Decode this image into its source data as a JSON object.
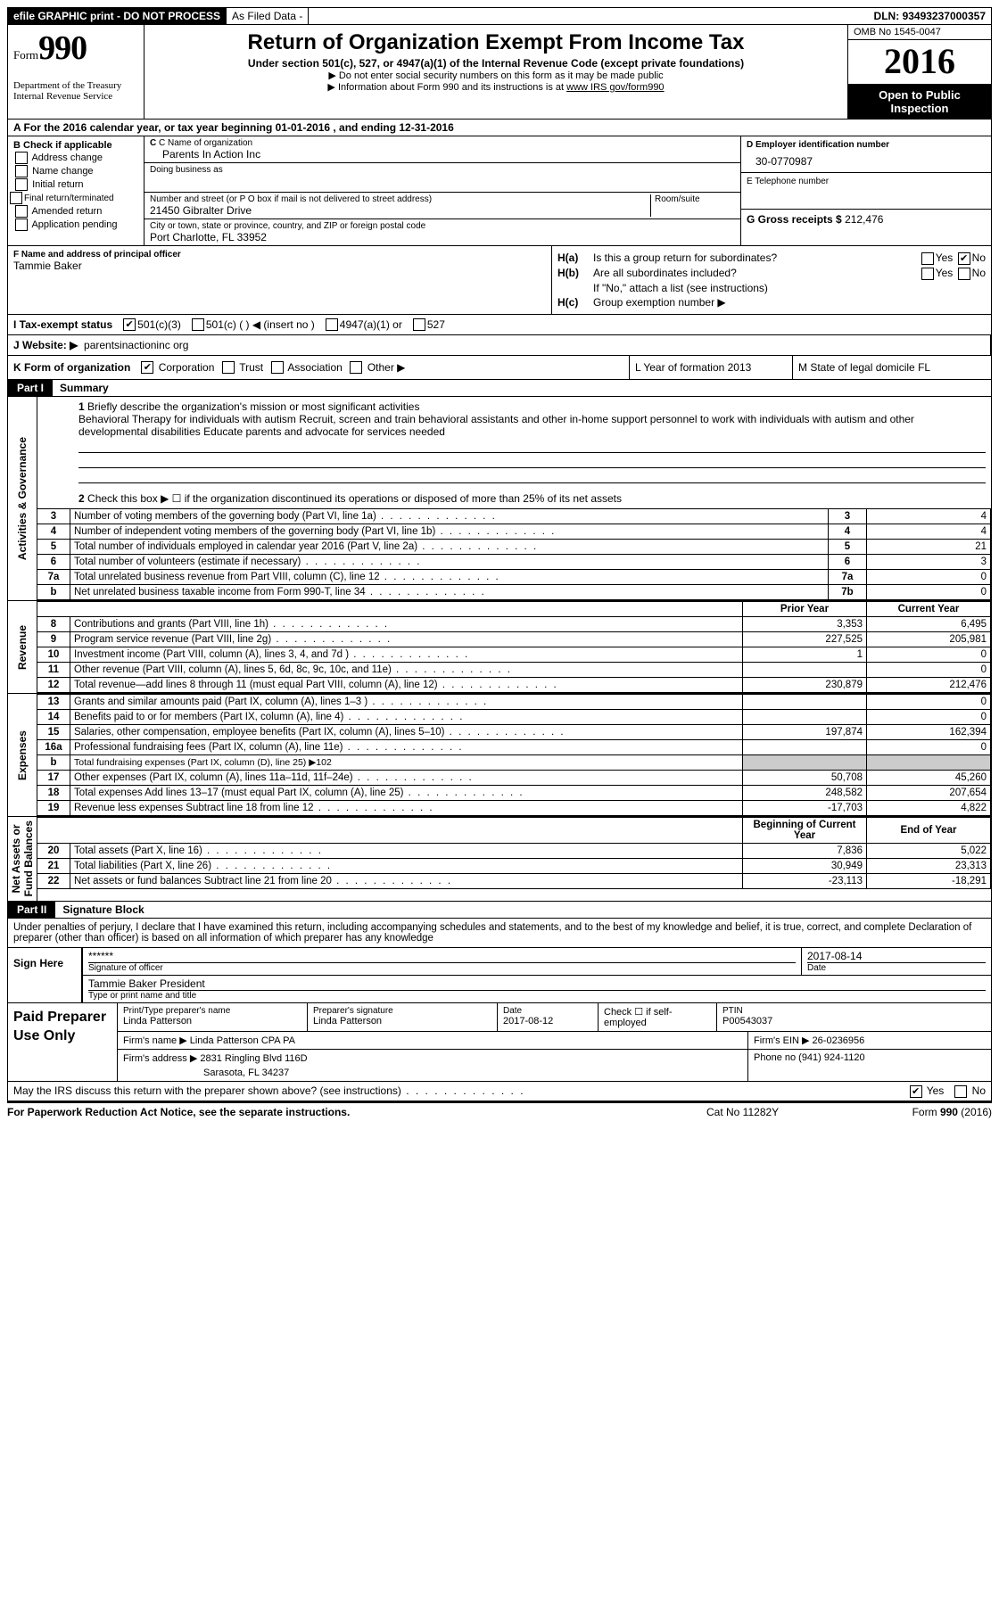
{
  "topbar": {
    "efile": "efile GRAPHIC print - DO NOT PROCESS",
    "asfiled": "As Filed Data -",
    "dln_label": "DLN:",
    "dln": "93493237000357"
  },
  "header": {
    "form_word": "Form",
    "form_no": "990",
    "dept1": "Department of the Treasury",
    "dept2": "Internal Revenue Service",
    "title": "Return of Organization Exempt From Income Tax",
    "subtitle": "Under section 501(c), 527, or 4947(a)(1) of the Internal Revenue Code (except private foundations)",
    "line1": "▶ Do not enter social security numbers on this form as it may be made public",
    "line2_pre": "▶ Information about Form 990 and its instructions is at ",
    "line2_link": "www IRS gov/form990",
    "omb": "OMB No  1545-0047",
    "year": "2016",
    "open": "Open to Public Inspection"
  },
  "rowA": "A   For the 2016 calendar year, or tax year beginning 01-01-2016   , and ending 12-31-2016",
  "boxB": {
    "hdr": "B Check if applicable",
    "opts": [
      "Address change",
      "Name change",
      "Initial return",
      "Final return/terminated",
      "Amended return",
      "Application pending"
    ]
  },
  "boxC": {
    "name_lbl": "C Name of organization",
    "name": "Parents In Action Inc",
    "dba_lbl": "Doing business as",
    "addr_lbl": "Number and street (or P O  box if mail is not delivered to street address)",
    "room_lbl": "Room/suite",
    "addr": "21450 Gibralter Drive",
    "city_lbl": "City or town, state or province, country, and ZIP or foreign postal code",
    "city": "Port Charlotte, FL  33952"
  },
  "boxD": {
    "lbl": "D Employer identification number",
    "val": "30-0770987"
  },
  "boxE": {
    "lbl": "E Telephone number"
  },
  "boxG": {
    "lbl": "G Gross receipts $",
    "val": "212,476"
  },
  "boxF": {
    "lbl": "F  Name and address of principal officer",
    "val": "Tammie Baker"
  },
  "boxH": {
    "a_lbl": "H(a)",
    "a_txt": "Is this a group return for subordinates?",
    "b_lbl": "H(b)",
    "b_txt": "Are all subordinates included?",
    "note": "If \"No,\" attach a list  (see instructions)",
    "c_lbl": "H(c)",
    "c_txt": "Group exemption number ▶",
    "yes": "Yes",
    "no": "No"
  },
  "rowI": {
    "lbl": "I   Tax-exempt status",
    "o1": "501(c)(3)",
    "o2": "501(c) (   ) ◀ (insert no )",
    "o3": "4947(a)(1) or",
    "o4": "527"
  },
  "rowJ": {
    "lbl": "J   Website: ▶",
    "val": "parentsinactioninc org"
  },
  "rowK": {
    "lbl": "K Form of organization",
    "o1": "Corporation",
    "o2": "Trust",
    "o3": "Association",
    "o4": "Other ▶",
    "L": "L Year of formation  2013",
    "M": "M State of legal domicile  FL"
  },
  "part1": {
    "num": "Part I",
    "title": "Summary"
  },
  "q1": {
    "num": "1",
    "txt": "Briefly describe the organization's mission or most significant activities",
    "desc": "Behavioral Therapy for individuals with autism  Recruit, screen and train behavioral assistants and other in-home support personnel to work with individuals with autism and other developmental disabilities  Educate parents and advocate for services needed"
  },
  "q2": {
    "num": "2",
    "txt": "Check this box ▶ ☐  if the organization discontinued its operations or disposed of more than 25% of its net assets"
  },
  "gov_rows": [
    {
      "n": "3",
      "d": "Number of voting members of the governing body (Part VI, line 1a)",
      "ref": "3",
      "v": "4"
    },
    {
      "n": "4",
      "d": "Number of independent voting members of the governing body (Part VI, line 1b)",
      "ref": "4",
      "v": "4"
    },
    {
      "n": "5",
      "d": "Total number of individuals employed in calendar year 2016 (Part V, line 2a)",
      "ref": "5",
      "v": "21"
    },
    {
      "n": "6",
      "d": "Total number of volunteers (estimate if necessary)",
      "ref": "6",
      "v": "3"
    },
    {
      "n": "7a",
      "d": "Total unrelated business revenue from Part VIII, column (C), line 12",
      "ref": "7a",
      "v": "0"
    },
    {
      "n": "b",
      "d": "Net unrelated business taxable income from Form 990-T, line 34",
      "ref": "7b",
      "v": "0"
    }
  ],
  "rev_hdr": {
    "py": "Prior Year",
    "cy": "Current Year"
  },
  "rev_rows": [
    {
      "n": "8",
      "d": "Contributions and grants (Part VIII, line 1h)",
      "py": "3,353",
      "cy": "6,495"
    },
    {
      "n": "9",
      "d": "Program service revenue (Part VIII, line 2g)",
      "py": "227,525",
      "cy": "205,981"
    },
    {
      "n": "10",
      "d": "Investment income (Part VIII, column (A), lines 3, 4, and 7d )",
      "py": "1",
      "cy": "0"
    },
    {
      "n": "11",
      "d": "Other revenue (Part VIII, column (A), lines 5, 6d, 8c, 9c, 10c, and 11e)",
      "py": "",
      "cy": "0"
    },
    {
      "n": "12",
      "d": "Total revenue—add lines 8 through 11 (must equal Part VIII, column (A), line 12)",
      "py": "230,879",
      "cy": "212,476"
    }
  ],
  "exp_rows": [
    {
      "n": "13",
      "d": "Grants and similar amounts paid (Part IX, column (A), lines 1–3 )",
      "py": "",
      "cy": "0"
    },
    {
      "n": "14",
      "d": "Benefits paid to or for members (Part IX, column (A), line 4)",
      "py": "",
      "cy": "0"
    },
    {
      "n": "15",
      "d": "Salaries, other compensation, employee benefits (Part IX, column (A), lines 5–10)",
      "py": "197,874",
      "cy": "162,394"
    },
    {
      "n": "16a",
      "d": "Professional fundraising fees (Part IX, column (A), line 11e)",
      "py": "",
      "cy": "0"
    },
    {
      "n": "b",
      "d": "Total fundraising expenses (Part IX, column (D), line 25) ▶102",
      "py": "—",
      "cy": "—"
    },
    {
      "n": "17",
      "d": "Other expenses (Part IX, column (A), lines 11a–11d, 11f–24e)",
      "py": "50,708",
      "cy": "45,260"
    },
    {
      "n": "18",
      "d": "Total expenses  Add lines 13–17 (must equal Part IX, column (A), line 25)",
      "py": "248,582",
      "cy": "207,654"
    },
    {
      "n": "19",
      "d": "Revenue less expenses  Subtract line 18 from line 12",
      "py": "-17,703",
      "cy": "4,822"
    }
  ],
  "na_hdr": {
    "b": "Beginning of Current Year",
    "e": "End of Year"
  },
  "na_rows": [
    {
      "n": "20",
      "d": "Total assets (Part X, line 16)",
      "b": "7,836",
      "e": "5,022"
    },
    {
      "n": "21",
      "d": "Total liabilities (Part X, line 26)",
      "b": "30,949",
      "e": "23,313"
    },
    {
      "n": "22",
      "d": "Net assets or fund balances  Subtract line 21 from line 20",
      "b": "-23,113",
      "e": "-18,291"
    }
  ],
  "side": {
    "gov": "Activities & Governance",
    "rev": "Revenue",
    "exp": "Expenses",
    "na": "Net Assets or\nFund Balances"
  },
  "part2": {
    "num": "Part II",
    "title": "Signature Block"
  },
  "sig": {
    "decl": "Under penalties of perjury, I declare that I have examined this return, including accompanying schedules and statements, and to the best of my knowledge and belief, it is true, correct, and complete  Declaration of preparer (other than officer) is based on all information of which preparer has any knowledge",
    "sign_here": "Sign Here",
    "stars": "******",
    "sig_lbl": "Signature of officer",
    "date": "2017-08-14",
    "date_lbl": "Date",
    "name": "Tammie Baker President",
    "name_lbl": "Type or print name and title"
  },
  "prep": {
    "hdr": "Paid Preparer Use Only",
    "r1": {
      "a": "Print/Type preparer's name",
      "av": "Linda Patterson",
      "b": "Preparer's signature",
      "bv": "Linda Patterson",
      "c": "Date",
      "cv": "2017-08-12",
      "d": "Check ☐ if self-employed",
      "e": "PTIN",
      "ev": "P00543037"
    },
    "r2": {
      "a": "Firm's name    ▶ Linda Patterson CPA PA",
      "b": "Firm's EIN ▶ 26-0236956"
    },
    "r3": {
      "a": "Firm's address ▶ 2831 Ringling Blvd 116D",
      "a2": "Sarasota, FL  34237",
      "b": "Phone no  (941) 924-1120"
    }
  },
  "footer": {
    "q": "May the IRS discuss this return with the preparer shown above? (see instructions)",
    "yes": "Yes",
    "no": "No"
  },
  "bottom": {
    "l": "For Paperwork Reduction Act Notice, see the separate instructions.",
    "c": "Cat No  11282Y",
    "r": "Form 990 (2016)"
  }
}
